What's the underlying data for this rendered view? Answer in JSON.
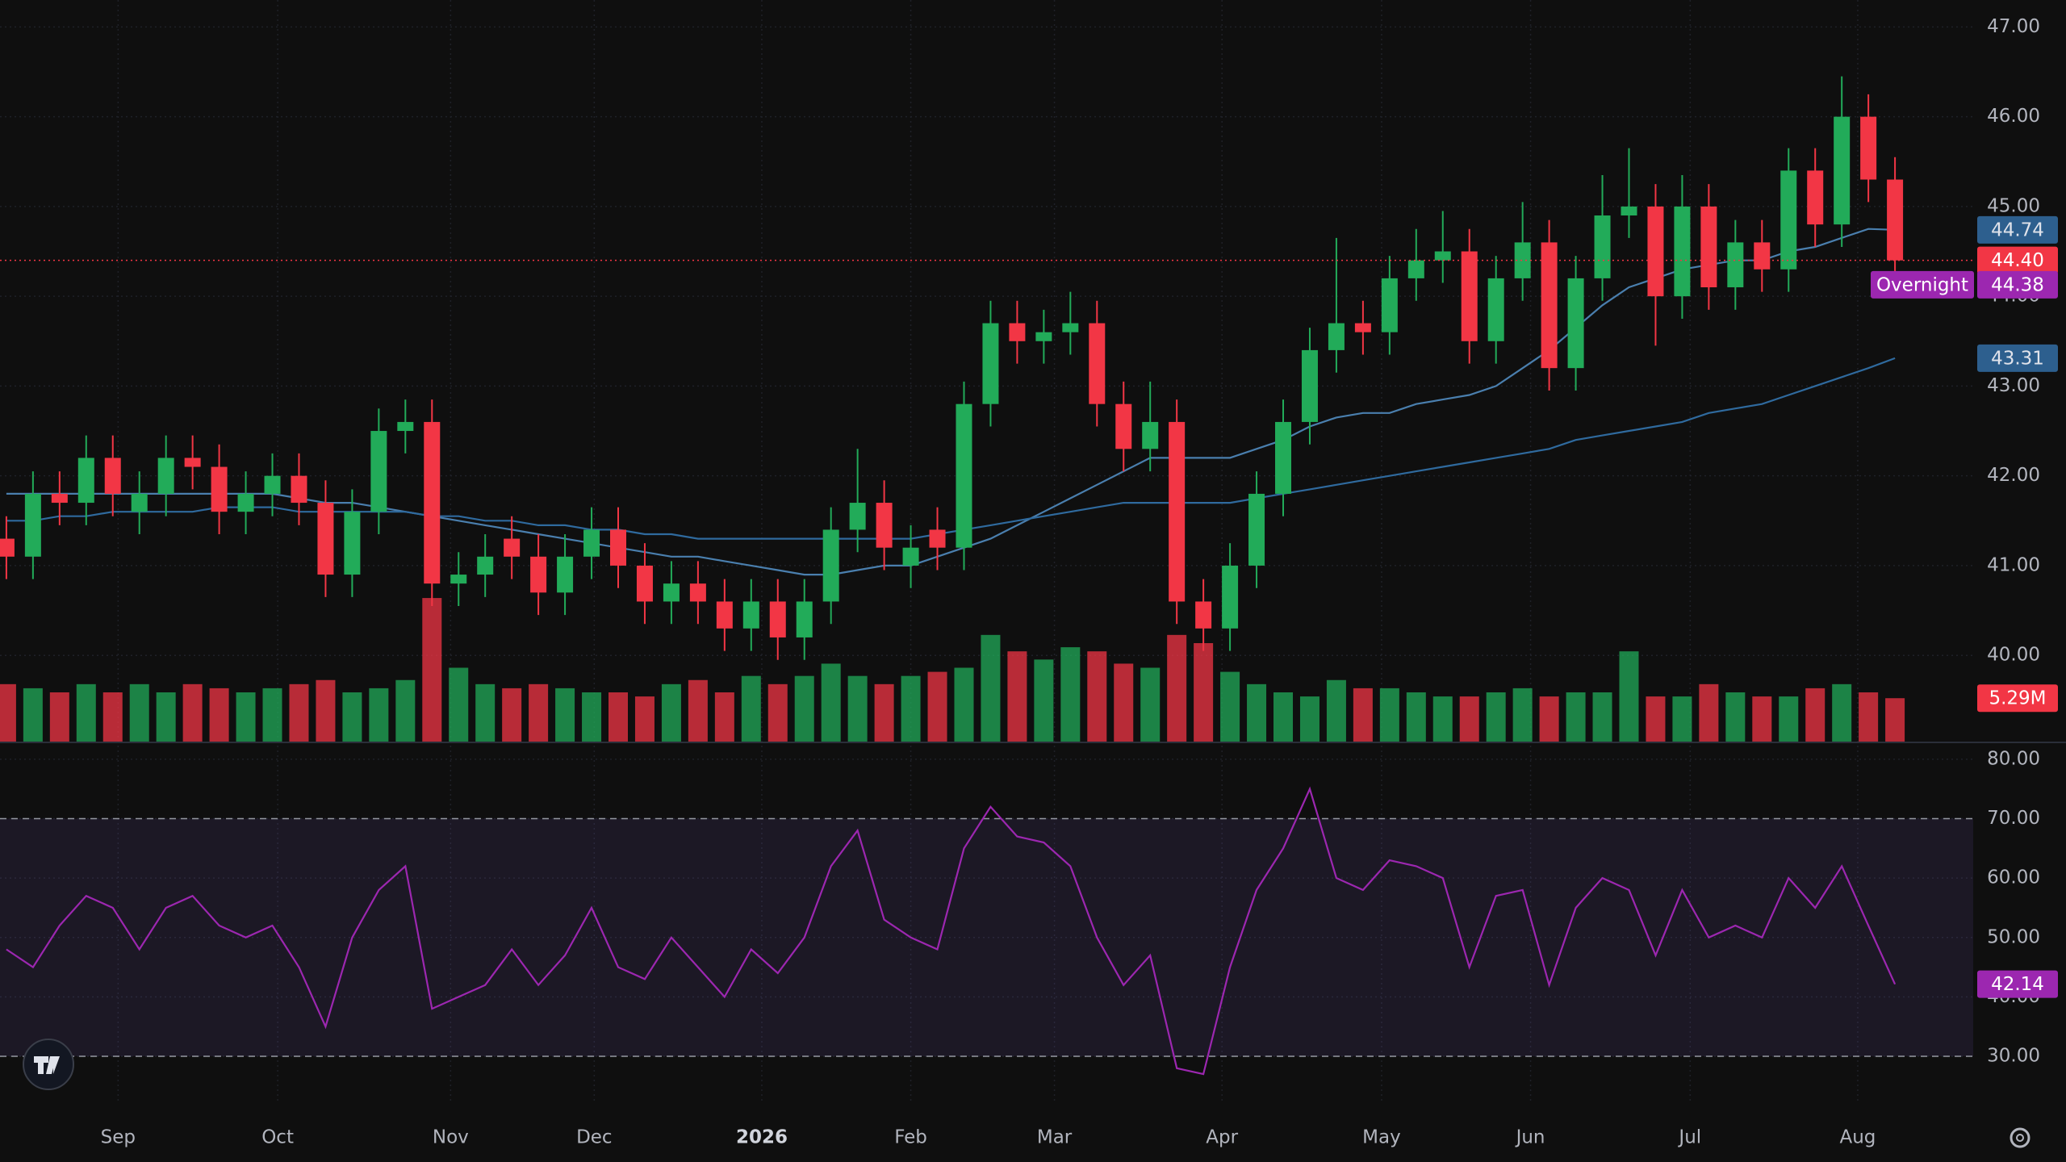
{
  "chart_data": [
    {
      "type": "candlestick",
      "xlim": [
        -0.24,
        73.94
      ],
      "xticks": [
        {
          "value": 4.2,
          "label": "Sep"
        },
        {
          "value": 10.2,
          "label": "Oct"
        },
        {
          "value": 16.7,
          "label": "Nov"
        },
        {
          "value": 22.1,
          "label": "Dec"
        },
        {
          "value": 28.4,
          "label": "2026"
        },
        {
          "value": 34.0,
          "label": "Feb"
        },
        {
          "value": 39.4,
          "label": "Mar"
        },
        {
          "value": 45.7,
          "label": "Apr"
        },
        {
          "value": 51.7,
          "label": "May"
        },
        {
          "value": 57.3,
          "label": "Jun"
        },
        {
          "value": 63.3,
          "label": "Jul"
        },
        {
          "value": 69.6,
          "label": "Aug"
        }
      ],
      "ylim": [
        39.04,
        47.3
      ],
      "yticks": [
        {
          "value": 40,
          "label": "40.00"
        },
        {
          "value": 41,
          "label": "41.00"
        },
        {
          "value": 42,
          "label": "42.00"
        },
        {
          "value": 43,
          "label": "43.00"
        },
        {
          "value": 44,
          "label": "44.00"
        },
        {
          "value": 45,
          "label": "45.00"
        },
        {
          "value": 46,
          "label": "46.00"
        },
        {
          "value": 47,
          "label": "47.00"
        }
      ],
      "grid": true,
      "up_color": "#22ab59",
      "down_color": "#f23645",
      "open": [
        41.3,
        41.1,
        41.8,
        41.7,
        42.2,
        41.6,
        41.8,
        42.2,
        42.1,
        41.6,
        41.8,
        42.0,
        41.7,
        40.9,
        41.6,
        42.5,
        42.6,
        40.8,
        40.9,
        41.3,
        41.1,
        40.7,
        41.1,
        41.4,
        41.0,
        40.6,
        40.8,
        40.6,
        40.3,
        40.6,
        40.2,
        40.6,
        41.4,
        41.7,
        41.0,
        41.4,
        41.2,
        42.8,
        43.7,
        43.5,
        43.6,
        43.7,
        42.8,
        42.3,
        42.6,
        40.6,
        40.3,
        41.0,
        41.8,
        42.6,
        43.4,
        43.7,
        43.6,
        44.2,
        44.4,
        44.5,
        43.5,
        44.2,
        44.6,
        43.2,
        44.2,
        44.9,
        45.0,
        44.0,
        45.0,
        44.1,
        44.6,
        44.3,
        45.4,
        44.8,
        46.0,
        45.3
      ],
      "high": [
        41.55,
        42.05,
        42.05,
        42.45,
        42.45,
        42.05,
        42.45,
        42.45,
        42.35,
        42.05,
        42.25,
        42.25,
        41.95,
        41.85,
        42.75,
        42.85,
        42.85,
        41.15,
        41.35,
        41.55,
        41.35,
        41.35,
        41.65,
        41.65,
        41.25,
        41.05,
        41.05,
        40.85,
        40.85,
        40.85,
        40.85,
        41.65,
        42.3,
        41.95,
        41.45,
        41.65,
        43.05,
        43.95,
        43.95,
        43.85,
        44.05,
        43.95,
        43.05,
        43.05,
        42.85,
        40.85,
        41.25,
        42.05,
        42.85,
        43.65,
        44.65,
        43.95,
        44.45,
        44.75,
        44.95,
        44.75,
        44.45,
        45.05,
        44.85,
        44.45,
        45.35,
        45.65,
        45.25,
        45.35,
        45.25,
        44.85,
        44.85,
        45.65,
        45.65,
        46.45,
        46.25,
        45.55
      ],
      "low": [
        40.85,
        40.85,
        41.45,
        41.45,
        41.55,
        41.35,
        41.55,
        41.85,
        41.35,
        41.35,
        41.55,
        41.45,
        40.65,
        40.65,
        41.35,
        42.25,
        40.55,
        40.55,
        40.65,
        40.85,
        40.45,
        40.45,
        40.85,
        40.75,
        40.35,
        40.35,
        40.35,
        40.05,
        40.05,
        39.95,
        39.95,
        40.35,
        41.15,
        40.95,
        40.75,
        40.95,
        40.95,
        42.55,
        43.25,
        43.25,
        43.35,
        42.55,
        42.05,
        42.05,
        40.35,
        40.05,
        40.05,
        40.75,
        41.55,
        42.35,
        43.15,
        43.35,
        43.35,
        43.95,
        44.15,
        43.25,
        43.25,
        43.95,
        42.95,
        42.95,
        43.95,
        44.65,
        43.45,
        43.75,
        43.85,
        43.85,
        44.05,
        44.05,
        44.55,
        44.55,
        45.05,
        44.15
      ],
      "close": [
        41.1,
        41.8,
        41.7,
        42.2,
        41.8,
        41.8,
        42.2,
        42.1,
        41.6,
        41.8,
        42.0,
        41.7,
        40.9,
        41.6,
        42.5,
        42.6,
        40.8,
        40.9,
        41.1,
        41.1,
        40.7,
        41.1,
        41.4,
        41.0,
        40.6,
        40.8,
        40.6,
        40.3,
        40.6,
        40.2,
        40.6,
        41.4,
        41.7,
        41.2,
        41.2,
        41.2,
        42.8,
        43.7,
        43.5,
        43.6,
        43.7,
        42.8,
        42.3,
        42.6,
        40.6,
        40.3,
        41.0,
        41.8,
        42.6,
        43.4,
        43.7,
        43.6,
        44.2,
        44.4,
        44.5,
        43.5,
        44.2,
        44.6,
        43.2,
        44.2,
        44.9,
        45.0,
        44.0,
        45.0,
        44.1,
        44.6,
        44.3,
        45.4,
        44.8,
        46.0,
        45.3,
        44.4
      ],
      "last_label": "44.40",
      "overnight": {
        "label": "Overnight",
        "value": 44.38
      },
      "series": [
        {
          "color": "#4a7fae",
          "values": [
            41.8,
            41.8,
            41.8,
            41.8,
            41.8,
            41.8,
            41.8,
            41.8,
            41.8,
            41.8,
            41.8,
            41.75,
            41.7,
            41.7,
            41.65,
            41.6,
            41.55,
            41.5,
            41.45,
            41.4,
            41.35,
            41.3,
            41.25,
            41.2,
            41.15,
            41.1,
            41.1,
            41.05,
            41.0,
            40.95,
            40.9,
            40.9,
            40.95,
            41.0,
            41.0,
            41.1,
            41.2,
            41.3,
            41.45,
            41.6,
            41.75,
            41.9,
            42.05,
            42.2,
            42.2,
            42.2,
            42.2,
            42.3,
            42.4,
            42.55,
            42.65,
            42.7,
            42.7,
            42.8,
            42.85,
            42.9,
            43.0,
            43.2,
            43.4,
            43.65,
            43.9,
            44.1,
            44.2,
            44.3,
            44.35,
            44.4,
            44.4,
            44.5,
            44.55,
            44.65,
            44.75,
            44.74
          ]
        },
        {
          "color": "#2f6a9e",
          "values": [
            41.5,
            41.5,
            41.55,
            41.55,
            41.6,
            41.6,
            41.6,
            41.6,
            41.65,
            41.65,
            41.65,
            41.6,
            41.6,
            41.6,
            41.6,
            41.6,
            41.55,
            41.55,
            41.5,
            41.5,
            41.45,
            41.45,
            41.4,
            41.4,
            41.35,
            41.35,
            41.3,
            41.3,
            41.3,
            41.3,
            41.3,
            41.3,
            41.3,
            41.3,
            41.3,
            41.35,
            41.4,
            41.45,
            41.5,
            41.55,
            41.6,
            41.65,
            41.7,
            41.7,
            41.7,
            41.7,
            41.7,
            41.75,
            41.8,
            41.85,
            41.9,
            41.95,
            42.0,
            42.05,
            42.1,
            42.15,
            42.2,
            42.25,
            42.3,
            42.4,
            42.45,
            42.5,
            42.55,
            42.6,
            42.7,
            42.75,
            42.8,
            42.9,
            43.0,
            43.1,
            43.2,
            43.31
          ]
        }
      ],
      "volume": {
        "vlim": [
          0,
          18
        ],
        "label": "5.29M",
        "values": [
          7,
          6.5,
          6,
          7,
          6,
          7,
          6,
          7,
          6.5,
          6,
          6.5,
          7,
          7.5,
          6,
          6.5,
          7.5,
          17.5,
          9,
          7,
          6.5,
          7,
          6.5,
          6,
          6,
          5.5,
          7,
          7.5,
          6,
          8,
          7,
          8,
          9.5,
          8,
          7,
          8,
          8.5,
          9,
          13,
          11,
          10,
          11.5,
          11,
          9.5,
          9,
          13,
          12,
          8.5,
          7,
          6,
          5.5,
          7.5,
          6.5,
          6.5,
          6,
          5.5,
          5.5,
          6,
          6.5,
          5.5,
          6,
          6,
          11,
          5.5,
          5.5,
          7,
          6,
          5.5,
          5.5,
          6.5,
          7,
          6,
          5.29
        ]
      }
    },
    {
      "type": "line",
      "color": "#9c27b0",
      "ylim": [
        22.4,
        82.7
      ],
      "yticks": [
        {
          "value": 30,
          "label": "30.00"
        },
        {
          "value": 40,
          "label": "40.00"
        },
        {
          "value": 50,
          "label": "50.00"
        },
        {
          "value": 60,
          "label": "60.00"
        },
        {
          "value": 70,
          "label": "70.00"
        },
        {
          "value": 80,
          "label": "80.00"
        }
      ],
      "band": [
        30,
        70
      ],
      "values": [
        48,
        45,
        52,
        57,
        55,
        48,
        55,
        57,
        52,
        50,
        52,
        45,
        35,
        50,
        58,
        62,
        38,
        40,
        42,
        48,
        42,
        47,
        55,
        45,
        43,
        50,
        45,
        40,
        48,
        44,
        50,
        62,
        68,
        53,
        50,
        48,
        65,
        72,
        67,
        66,
        62,
        50,
        42,
        47,
        28,
        27,
        45,
        58,
        65,
        75,
        60,
        58,
        63,
        62,
        60,
        45,
        57,
        58,
        42,
        55,
        60,
        58,
        47,
        58,
        50,
        52,
        50,
        60,
        55,
        62,
        52,
        42.14
      ]
    }
  ]
}
